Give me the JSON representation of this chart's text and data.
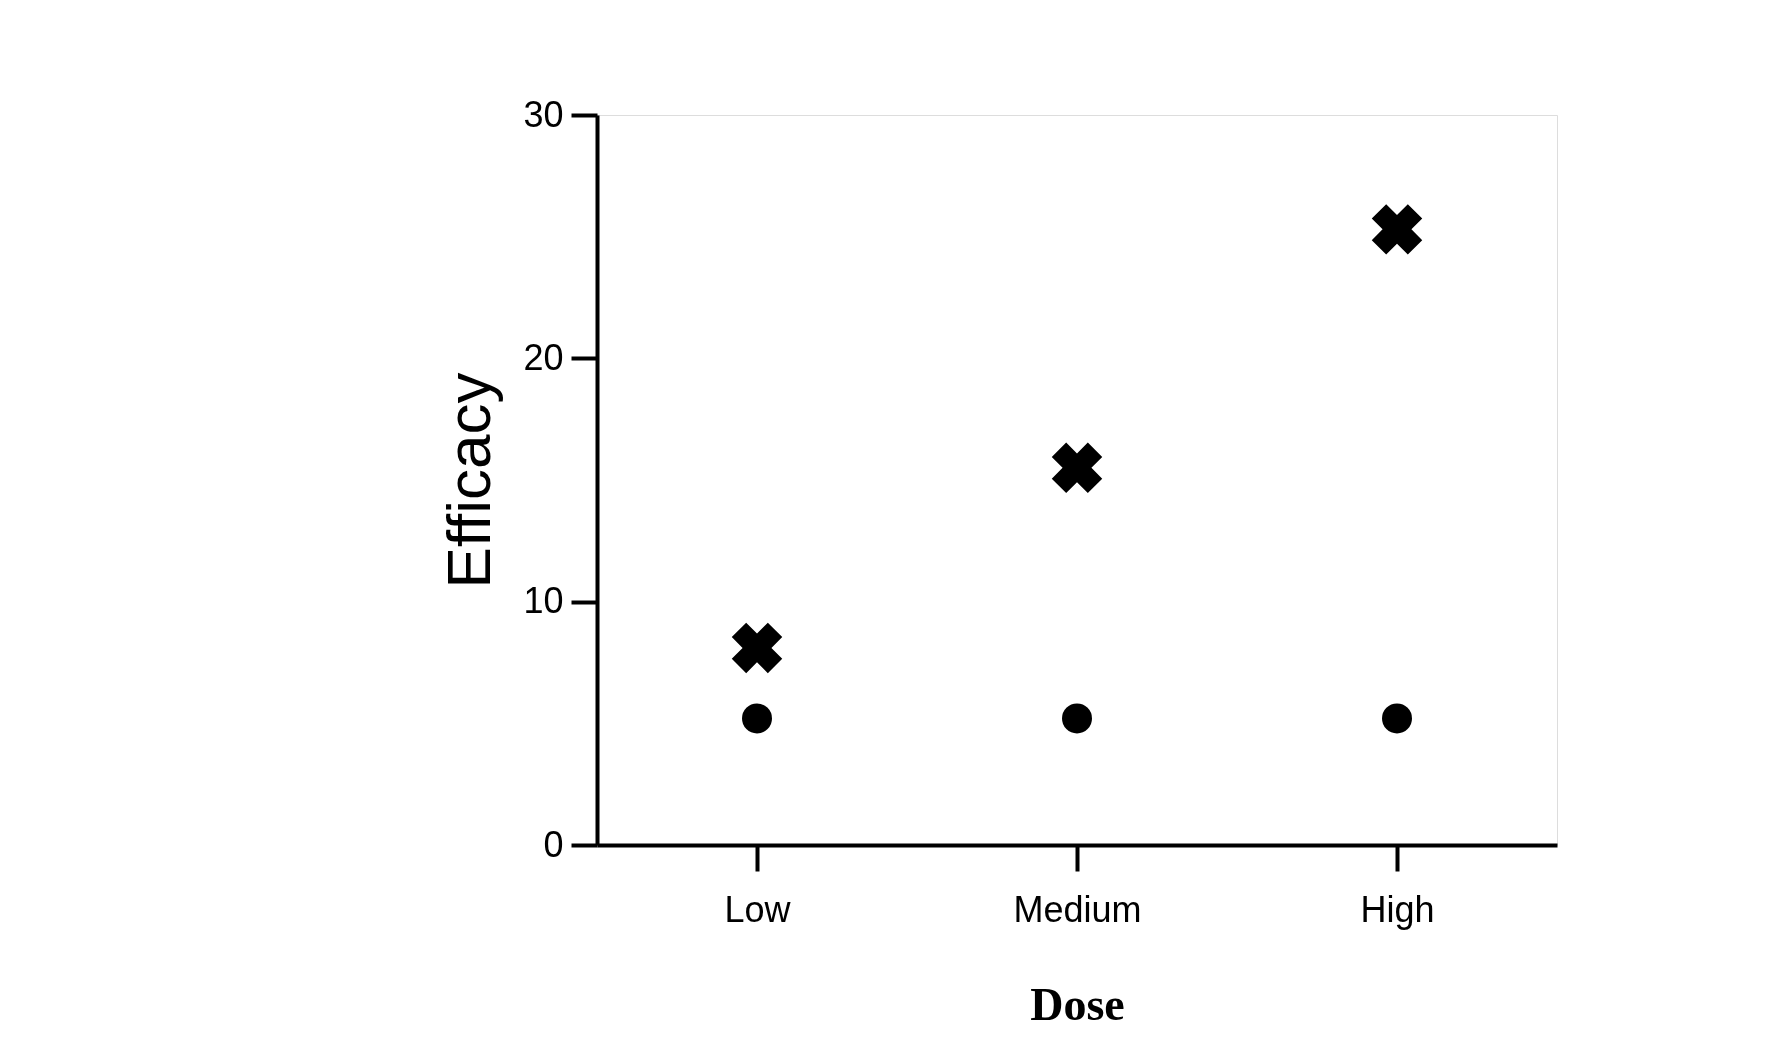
{
  "chart_data": {
    "type": "scatter",
    "xlabel": "Dose",
    "ylabel": "Efficacy",
    "categories": [
      "Low",
      "Medium",
      "High"
    ],
    "series": [
      {
        "color": "#000000",
        "marker": "cross",
        "values": [
          8.1,
          15.5,
          25.3
        ]
      },
      {
        "color": "#000000",
        "marker": "circle",
        "values": [
          5.2,
          5.2,
          5.2
        ]
      }
    ],
    "ylim": [
      0,
      30
    ],
    "yticks": [
      0,
      10,
      20,
      30
    ],
    "grid": false
  }
}
